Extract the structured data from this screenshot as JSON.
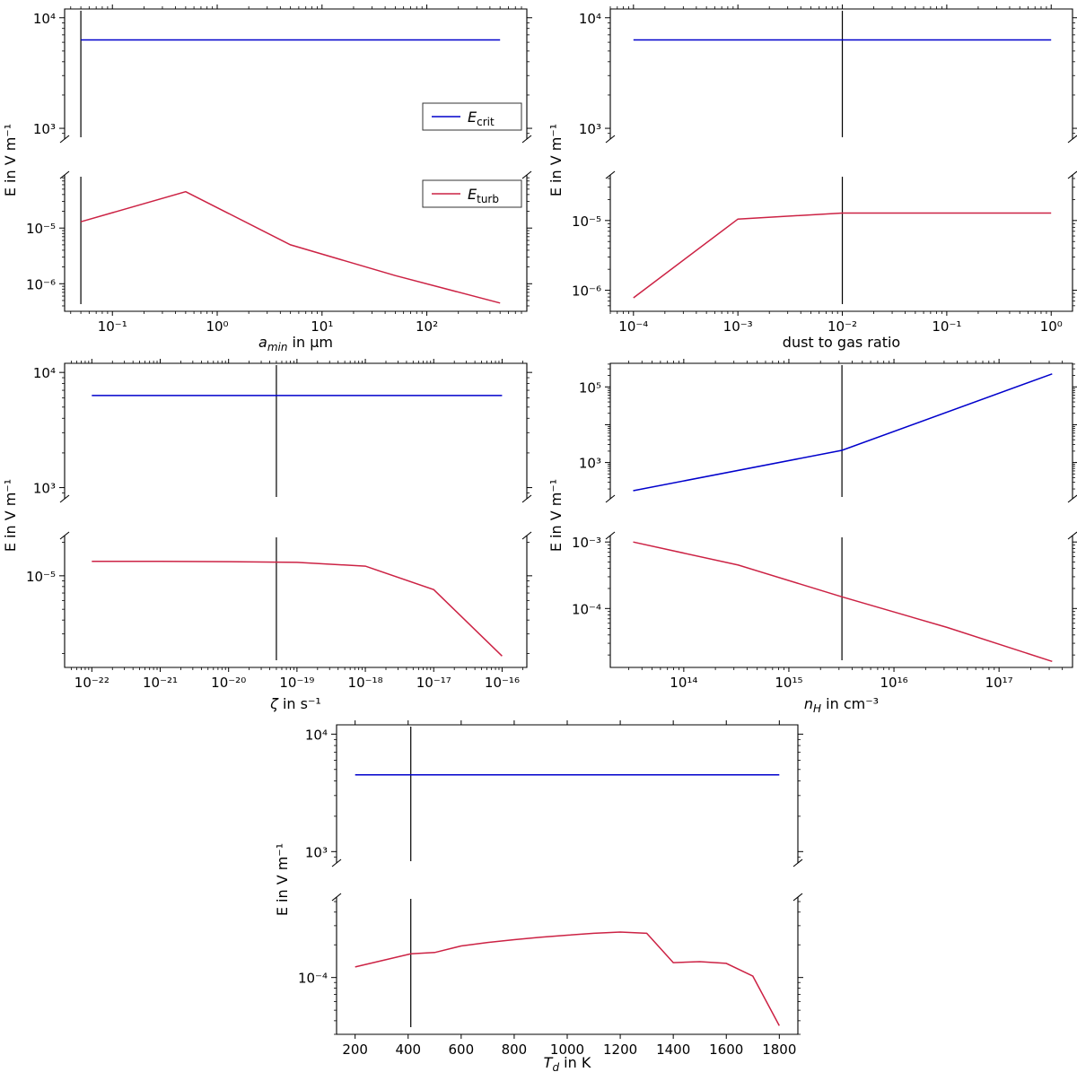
{
  "colors": {
    "crit": "#0000cc",
    "turb": "#cc2244",
    "marker": "#000000"
  },
  "chart_data": [
    {
      "id": "p1",
      "type": "line",
      "xlabel": "a_min in μm",
      "ylabel": "E in V m⁻¹",
      "xscale": "log",
      "xlim": [
        0.035,
        900
      ],
      "xticks": [
        {
          "v": 0.1,
          "label": "10⁻¹"
        },
        {
          "v": 1,
          "label": "10⁰"
        },
        {
          "v": 10,
          "label": "10¹"
        },
        {
          "v": 100,
          "label": "10²"
        }
      ],
      "top_ylim": [
        800,
        12000
      ],
      "top_yticks": [
        {
          "v": 1000,
          "label": "10³"
        },
        {
          "v": 10000,
          "label": "10⁴"
        }
      ],
      "bottom_ylim": [
        3.2e-07,
        9e-05
      ],
      "bottom_yticks": [
        {
          "v": 1e-06,
          "label": "10⁻⁶"
        },
        {
          "v": 1e-05,
          "label": "10⁻⁵"
        }
      ],
      "marker_x": 0.05,
      "legend": [
        "E_crit",
        "E_turb"
      ],
      "series": [
        {
          "name": "E_crit",
          "panel": "top",
          "x": [
            0.05,
            500
          ],
          "y": [
            6300,
            6300
          ]
        },
        {
          "name": "E_turb",
          "panel": "bottom",
          "x": [
            0.05,
            0.5,
            5,
            50,
            500
          ],
          "y": [
            1.3e-05,
            4.5e-05,
            5e-06,
            1.4e-06,
            4.5e-07
          ]
        }
      ]
    },
    {
      "id": "p2",
      "type": "line",
      "xlabel": "dust to gas ratio",
      "ylabel": "E in V m⁻¹",
      "xscale": "log",
      "xlim": [
        6e-05,
        1.6
      ],
      "xticks": [
        {
          "v": 0.0001,
          "label": "10⁻⁴"
        },
        {
          "v": 0.001,
          "label": "10⁻³"
        },
        {
          "v": 0.01,
          "label": "10⁻²"
        },
        {
          "v": 0.1,
          "label": "10⁻¹"
        },
        {
          "v": 1,
          "label": "10⁰"
        }
      ],
      "top_ylim": [
        800,
        12000
      ],
      "top_yticks": [
        {
          "v": 1000,
          "label": "10³"
        },
        {
          "v": 10000,
          "label": "10⁴"
        }
      ],
      "bottom_ylim": [
        5e-07,
        4.5e-05
      ],
      "bottom_yticks": [
        {
          "v": 1e-06,
          "label": "10⁻⁶"
        },
        {
          "v": 1e-05,
          "label": "10⁻⁵"
        }
      ],
      "marker_x": 0.01,
      "series": [
        {
          "name": "E_crit",
          "panel": "top",
          "x": [
            0.0001,
            1
          ],
          "y": [
            6300,
            6300
          ]
        },
        {
          "name": "E_turb",
          "panel": "bottom",
          "x": [
            0.0001,
            0.001,
            0.01,
            0.1,
            1
          ],
          "y": [
            7.8e-07,
            1.05e-05,
            1.28e-05,
            1.28e-05,
            1.28e-05
          ]
        }
      ]
    },
    {
      "id": "p3",
      "type": "line",
      "xlabel": "ζ in s⁻¹",
      "ylabel": "E in V m⁻¹",
      "xscale": "log",
      "xlim": [
        4e-23,
        2.3e-16
      ],
      "xticks": [
        {
          "v": 1e-22,
          "label": "10⁻²²"
        },
        {
          "v": 1e-21,
          "label": "10⁻²¹"
        },
        {
          "v": 1e-20,
          "label": "10⁻²⁰"
        },
        {
          "v": 1e-19,
          "label": "10⁻¹⁹"
        },
        {
          "v": 1e-18,
          "label": "10⁻¹⁸"
        },
        {
          "v": 1e-17,
          "label": "10⁻¹⁷"
        },
        {
          "v": 1e-16,
          "label": "10⁻¹⁶"
        }
      ],
      "top_ylim": [
        800,
        12000
      ],
      "top_yticks": [
        {
          "v": 1000,
          "label": "10³"
        },
        {
          "v": 10000,
          "label": "10⁴"
        }
      ],
      "bottom_ylim": [
        1.5e-06,
        2.3e-05
      ],
      "bottom_yticks": [
        {
          "v": 1e-05,
          "label": "10⁻⁵"
        }
      ],
      "marker_x": 5e-20,
      "series": [
        {
          "name": "E_crit",
          "panel": "top",
          "x": [
            1e-22,
            1e-16
          ],
          "y": [
            6300,
            6300
          ]
        },
        {
          "name": "E_turb",
          "panel": "bottom",
          "x": [
            1e-22,
            1e-21,
            1e-20,
            1e-19,
            1e-18,
            1e-17,
            1e-16
          ],
          "y": [
            1.35e-05,
            1.35e-05,
            1.34e-05,
            1.32e-05,
            1.22e-05,
            7.5e-06,
            1.9e-06
          ]
        }
      ]
    },
    {
      "id": "p4",
      "type": "line",
      "xlabel": "n_H in cm⁻³",
      "ylabel": "E in V m⁻¹",
      "xscale": "log",
      "xlim": [
        20000000000000.0,
        5e+17
      ],
      "xticks": [
        {
          "v": 100000000000000.0,
          "label": "10¹⁴"
        },
        {
          "v": 1000000000000000.0,
          "label": "10¹⁵"
        },
        {
          "v": 1e+16,
          "label": "10¹⁶"
        },
        {
          "v": 1e+17,
          "label": "10¹⁷"
        }
      ],
      "top_ylim": [
        110,
        420000
      ],
      "top_yticks": [
        {
          "v": 1000,
          "label": "10³"
        },
        {
          "v": 100000,
          "label": "10⁵"
        }
      ],
      "bottom_ylim": [
        1.3e-05,
        0.00125
      ],
      "bottom_yticks": [
        {
          "v": 0.0001,
          "label": "10⁻⁴"
        },
        {
          "v": 0.001,
          "label": "10⁻³"
        }
      ],
      "marker_x": 3200000000000000.0,
      "series": [
        {
          "name": "E_crit",
          "panel": "top",
          "x": [
            33000000000000.0,
            3200000000000000.0,
            3.2e+17
          ],
          "y": [
            180,
            2100,
            220000
          ]
        },
        {
          "name": "E_turb",
          "panel": "bottom",
          "x": [
            33000000000000.0,
            330000000000000.0,
            3200000000000000.0,
            3.2e+16,
            3.2e+17
          ],
          "y": [
            0.001,
            0.00045,
            0.00015,
            5.2e-05,
            1.6e-05
          ]
        }
      ]
    },
    {
      "id": "p5",
      "type": "line",
      "xlabel": "T_d in K",
      "ylabel": "E in V m⁻¹",
      "xscale": "linear",
      "xlim": [
        130,
        1870
      ],
      "xticks": [
        {
          "v": 200,
          "label": "200"
        },
        {
          "v": 400,
          "label": "400"
        },
        {
          "v": 600,
          "label": "600"
        },
        {
          "v": 800,
          "label": "800"
        },
        {
          "v": 1000,
          "label": "1000"
        },
        {
          "v": 1200,
          "label": "1200"
        },
        {
          "v": 1400,
          "label": "1400"
        },
        {
          "v": 1600,
          "label": "1600"
        },
        {
          "v": 1800,
          "label": "1800"
        }
      ],
      "top_ylim": [
        800,
        12000
      ],
      "top_yticks": [
        {
          "v": 1000,
          "label": "10³"
        },
        {
          "v": 10000,
          "label": "10⁴"
        }
      ],
      "bottom_ylim": [
        3e-05,
        0.00055
      ],
      "bottom_yticks": [
        {
          "v": 0.0001,
          "label": "10⁻⁴"
        }
      ],
      "marker_x": 410,
      "series": [
        {
          "name": "E_crit",
          "panel": "top",
          "x": [
            200,
            1800
          ],
          "y": [
            4500,
            4500
          ]
        },
        {
          "name": "E_turb",
          "panel": "bottom",
          "x": [
            200,
            410,
            500,
            600,
            700,
            800,
            900,
            1000,
            1100,
            1200,
            1300,
            1400,
            1500,
            1600,
            1700,
            1800
          ],
          "y": [
            0.000125,
            0.000165,
            0.00017,
            0.000195,
            0.00021,
            0.000223,
            0.000235,
            0.000245,
            0.000255,
            0.000262,
            0.000255,
            0.000137,
            0.00014,
            0.000135,
            0.000103,
            3.6e-05
          ]
        }
      ]
    }
  ]
}
